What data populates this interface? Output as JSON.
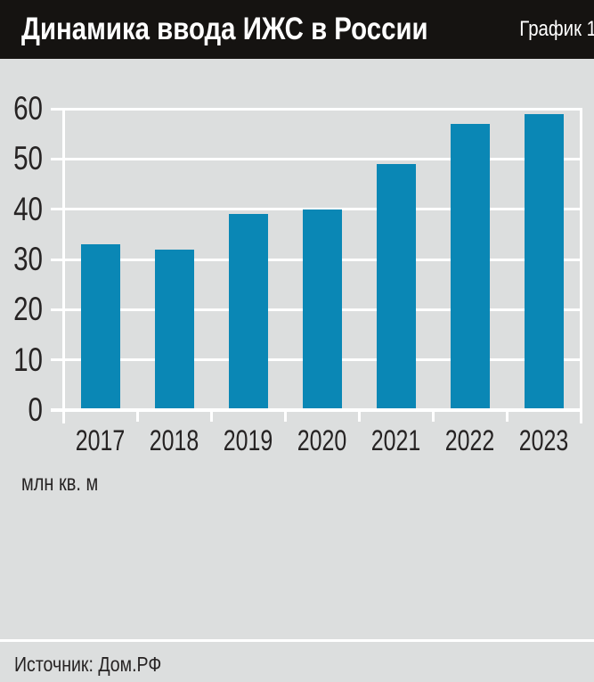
{
  "header": {
    "title": "Динамика ввода ИЖС в России",
    "chart_label": "График 1"
  },
  "chart_data": {
    "type": "bar",
    "title": "Динамика ввода ИЖС в России",
    "categories": [
      "2017",
      "2018",
      "2019",
      "2020",
      "2021",
      "2022",
      "2023"
    ],
    "values": [
      33,
      32,
      39,
      40,
      49,
      57,
      59
    ],
    "xlabel": "",
    "ylabel": "млн кв. м",
    "ylim": [
      0,
      60
    ],
    "yticks": [
      0,
      10,
      20,
      30,
      40,
      50,
      60
    ],
    "grid": true,
    "legend": "none"
  },
  "footer": {
    "source": "Источник: Дом.РФ"
  },
  "colors": {
    "page_bg": "#dcdede",
    "header_bg": "#151311",
    "bar": "#0a87b5",
    "grid": "#ffffff",
    "text": "#262323"
  }
}
